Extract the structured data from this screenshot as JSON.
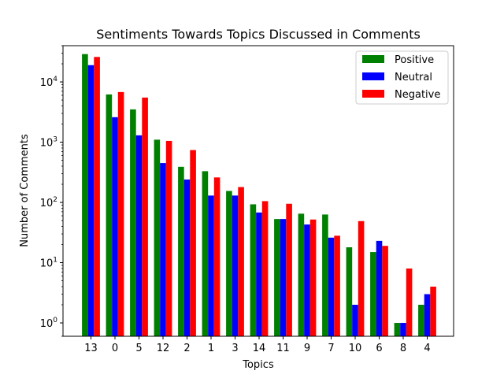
{
  "chart_data": {
    "type": "bar",
    "title": "Sentiments Towards Topics Discussed in Comments",
    "xlabel": "Topics",
    "ylabel": "Number of Comments",
    "yscale": "log",
    "ylim": [
      0.6,
      40000
    ],
    "grid": false,
    "legend_position": "top-right",
    "categories": [
      "13",
      "0",
      "5",
      "12",
      "2",
      "1",
      "3",
      "14",
      "11",
      "9",
      "7",
      "10",
      "6",
      "8",
      "4"
    ],
    "series": [
      {
        "name": "Positive",
        "color": "#008000",
        "values": [
          29000,
          6200,
          3500,
          1100,
          390,
          330,
          155,
          93,
          53,
          65,
          63,
          18,
          15,
          1,
          2
        ]
      },
      {
        "name": "Neutral",
        "color": "#0000ff",
        "values": [
          19000,
          2600,
          1300,
          450,
          240,
          130,
          130,
          68,
          53,
          43,
          26,
          2,
          23,
          1,
          3
        ]
      },
      {
        "name": "Negative",
        "color": "#ff0000",
        "values": [
          26000,
          6800,
          5500,
          1050,
          740,
          260,
          180,
          105,
          95,
          52,
          28,
          49,
          19,
          8,
          4
        ]
      }
    ],
    "y_ticks": [
      {
        "value": 1,
        "base": "10",
        "exp": "0"
      },
      {
        "value": 10,
        "base": "10",
        "exp": "1"
      },
      {
        "value": 100,
        "base": "10",
        "exp": "2"
      },
      {
        "value": 1000,
        "base": "10",
        "exp": "3"
      },
      {
        "value": 10000,
        "base": "10",
        "exp": "4"
      }
    ]
  }
}
